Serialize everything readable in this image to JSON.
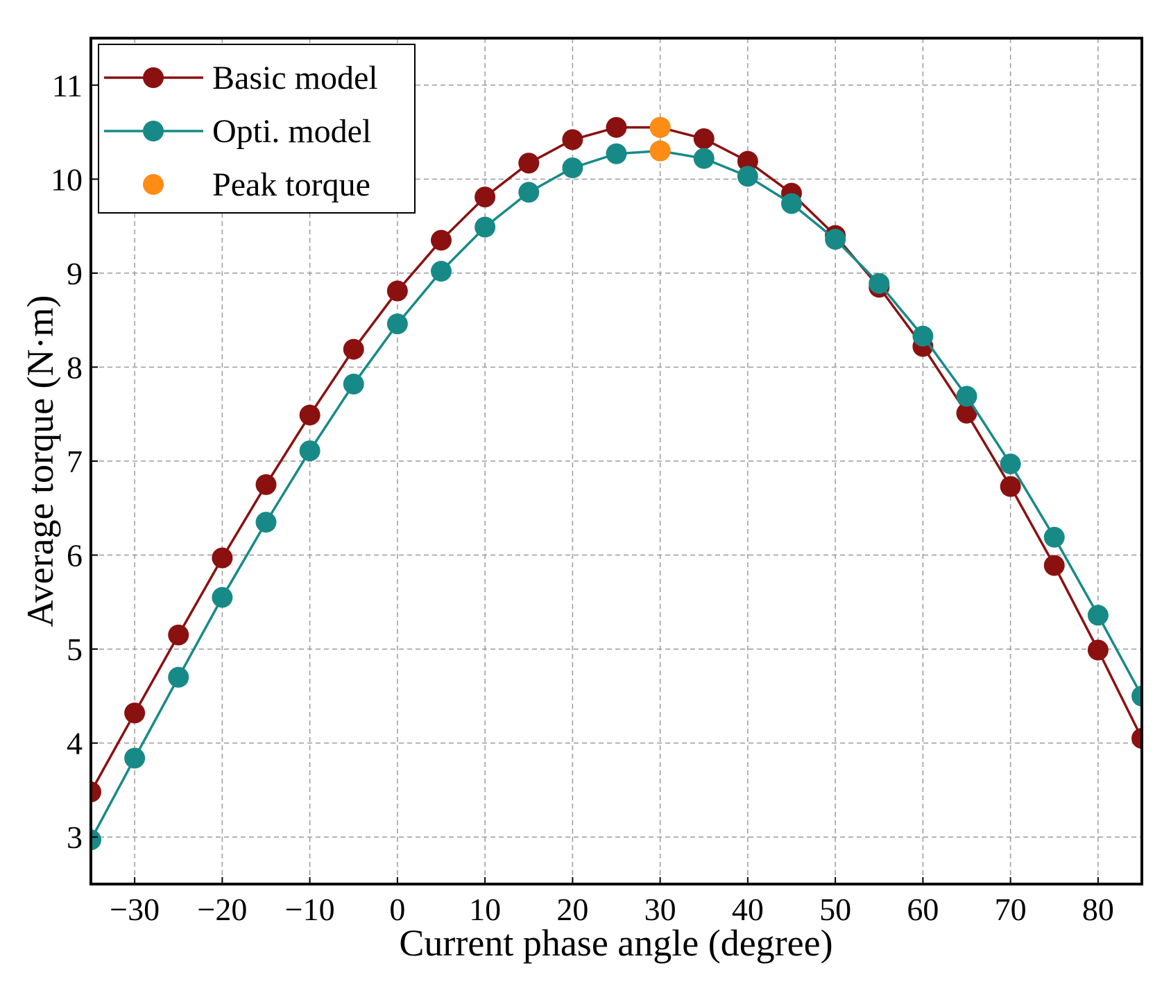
{
  "chart_data": {
    "type": "line",
    "xlabel": "Current phase angle (degree)",
    "ylabel": "Average torque (N·m)",
    "xlim": [
      -35,
      85
    ],
    "ylim": [
      2.5,
      11.5
    ],
    "xticks": [
      -30,
      -20,
      -10,
      0,
      10,
      20,
      30,
      40,
      50,
      60,
      70,
      80
    ],
    "xtick_labels": [
      "−30",
      "−20",
      "−10",
      "0",
      "10",
      "20",
      "30",
      "40",
      "50",
      "60",
      "70",
      "80"
    ],
    "yticks": [
      3,
      4,
      5,
      6,
      7,
      8,
      9,
      10,
      11
    ],
    "ytick_labels": [
      "3",
      "4",
      "5",
      "6",
      "7",
      "8",
      "9",
      "10",
      "11"
    ],
    "grid": true,
    "legend_position": "top-left",
    "x": [
      -35,
      -30,
      -25,
      -20,
      -15,
      -10,
      -5,
      0,
      5,
      10,
      15,
      20,
      25,
      30,
      35,
      40,
      45,
      50,
      55,
      60,
      65,
      70,
      75,
      80,
      85
    ],
    "series": [
      {
        "name": "Basic model",
        "color": "#8b1010",
        "values": [
          3.48,
          4.32,
          5.15,
          5.97,
          6.75,
          7.49,
          8.19,
          8.81,
          9.35,
          9.81,
          10.17,
          10.42,
          10.55,
          10.55,
          10.43,
          10.19,
          9.85,
          9.4,
          8.85,
          8.22,
          7.51,
          6.73,
          5.89,
          4.99,
          4.05
        ]
      },
      {
        "name": "Opti. model",
        "color": "#178a87",
        "values": [
          2.97,
          3.84,
          4.7,
          5.55,
          6.35,
          7.11,
          7.82,
          8.46,
          9.02,
          9.49,
          9.86,
          10.12,
          10.27,
          10.3,
          10.22,
          10.03,
          9.74,
          9.36,
          8.89,
          8.33,
          7.69,
          6.97,
          6.19,
          5.36,
          4.5
        ]
      }
    ],
    "peak_markers": {
      "name": "Peak torque",
      "color": "#ff8c14",
      "points": [
        {
          "x": 30,
          "y": 10.55
        },
        {
          "x": 30,
          "y": 10.3
        }
      ]
    }
  }
}
